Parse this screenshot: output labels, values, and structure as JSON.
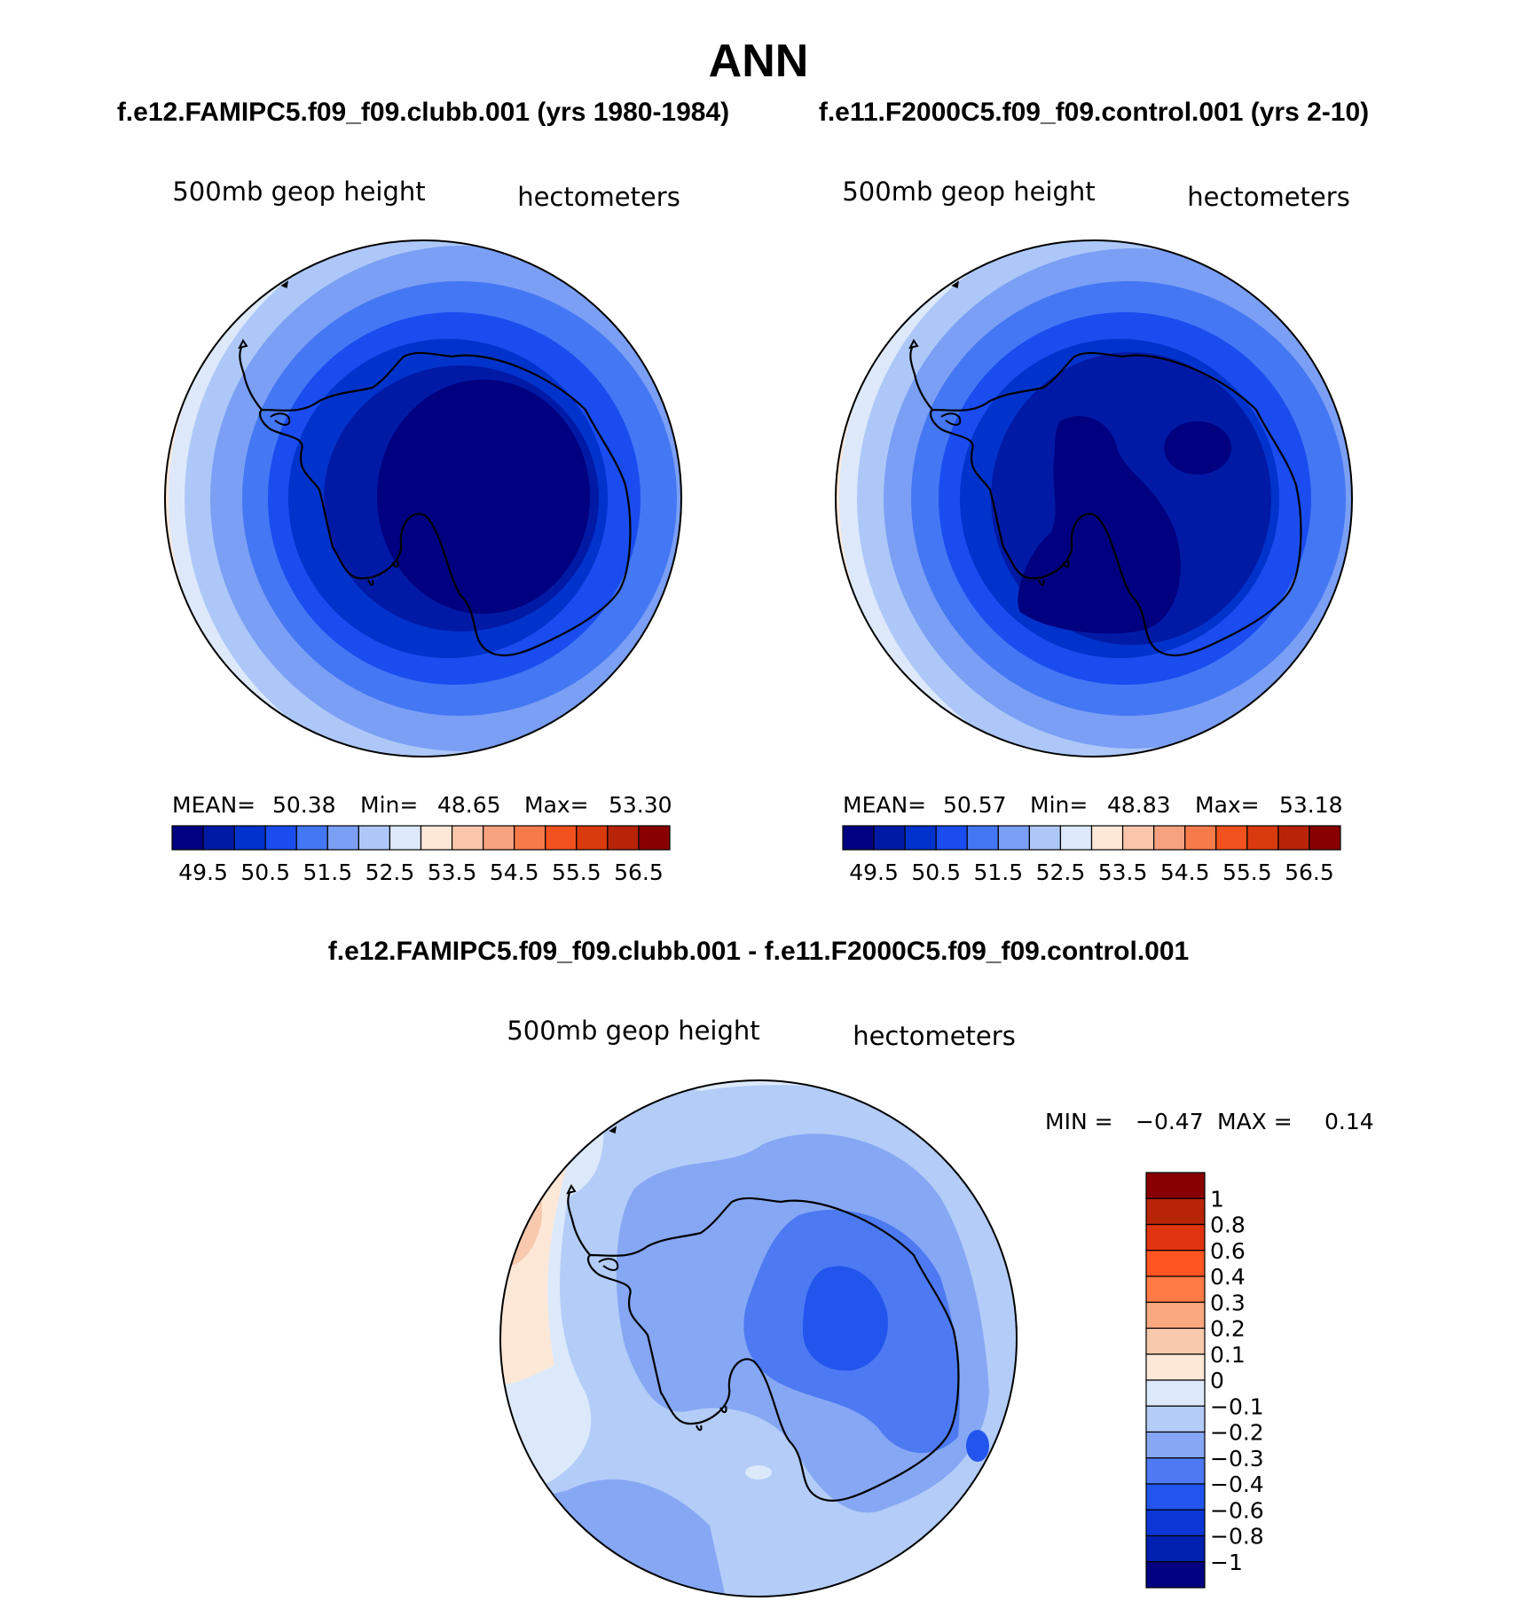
{
  "title": "ANN",
  "panels": [
    {
      "case_title": "f.e12.FAMIPC5.f09_f09.clubb.001 (yrs 1980-1984)",
      "variable": "500mb geop height",
      "units": "hectometers",
      "stats": {
        "mean_label": "MEAN=",
        "mean": "50.38",
        "min_label": "Min=",
        "min": "48.65",
        "max_label": "Max=",
        "max": "53.30"
      }
    },
    {
      "case_title": "f.e11.F2000C5.f09_f09.control.001 (yrs 2-10)",
      "variable": "500mb geop height",
      "units": "hectometers",
      "stats": {
        "mean_label": "MEAN=",
        "mean": "50.57",
        "min_label": "Min=",
        "min": "48.83",
        "max_label": "Max=",
        "max": "53.18"
      }
    }
  ],
  "colorbar_top": {
    "colors": [
      "#000080",
      "#001aa6",
      "#0033cc",
      "#1a4cf0",
      "#4477f3",
      "#7a9ff5",
      "#adc8f8",
      "#dde9fb",
      "#fde8d8",
      "#f9c6ab",
      "#f6a17f",
      "#f67a4a",
      "#f2521e",
      "#d93a0e",
      "#b82408",
      "#880000"
    ],
    "tick_labels": [
      "49.5",
      "50.5",
      "51.5",
      "52.5",
      "53.5",
      "54.5",
      "55.5",
      "56.5"
    ]
  },
  "difference": {
    "title": "f.e12.FAMIPC5.f09_f09.clubb.001 - f.e11.F2000C5.f09_f09.control.001",
    "variable": "500mb geop height",
    "units": "hectometers",
    "stats": {
      "min_label": "MIN =",
      "min": "−0.47",
      "max_label": "MAX =",
      "max": "0.14"
    }
  },
  "colorbar_diff": {
    "colors": [
      "#880000",
      "#b82408",
      "#e03410",
      "#ff5522",
      "#ff7a44",
      "#f9a880",
      "#f8c9ad",
      "#fde8d8",
      "#dce9fb",
      "#b3ccf8",
      "#86a7f4",
      "#4d7af2",
      "#2255ee",
      "#0c36d6",
      "#0020b0",
      "#000080"
    ],
    "tick_labels": [
      "1",
      "0.8",
      "0.6",
      "0.4",
      "0.3",
      "0.2",
      "0.1",
      "0",
      "−0.1",
      "−0.2",
      "−0.3",
      "−0.4",
      "−0.6",
      "−0.8",
      "−1"
    ]
  }
}
